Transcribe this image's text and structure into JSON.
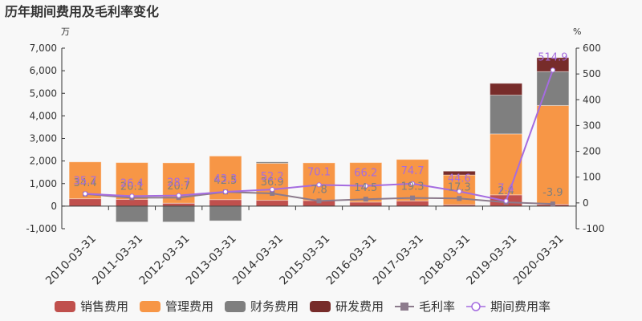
{
  "title": "历年期间费用及毛利率变化",
  "left_unit": "万",
  "right_unit": "%",
  "colors": {
    "sales": "#c0504d",
    "admin": "#f79646",
    "finance": "#7f7f7f",
    "rnd": "#772c2a",
    "gross_margin": "#8c7b8c",
    "expense_rate": "#a56ce0"
  },
  "legend": [
    {
      "key": "sales",
      "label": "销售费用",
      "type": "bar"
    },
    {
      "key": "admin",
      "label": "管理费用",
      "type": "bar"
    },
    {
      "key": "finance",
      "label": "财务费用",
      "type": "bar"
    },
    {
      "key": "rnd",
      "label": "研发费用",
      "type": "bar"
    },
    {
      "key": "gross_margin",
      "label": "毛利率",
      "type": "line-square"
    },
    {
      "key": "expense_rate",
      "label": "期间费用率",
      "type": "line-circle"
    }
  ],
  "chart_data": {
    "type": "bar",
    "title": "历年期间费用及毛利率变化",
    "xlabel": "",
    "ylabel": "万",
    "y2label": "%",
    "ylim": [
      -1000,
      7000
    ],
    "y2lim": [
      -100,
      600
    ],
    "yticks": [
      "7,000",
      "6,000",
      "5,000",
      "4,000",
      "3,000",
      "2,000",
      "1,000",
      "0",
      "-1,000"
    ],
    "y2ticks": [
      "600",
      "500",
      "400",
      "300",
      "200",
      "100",
      "0",
      "-100"
    ],
    "categories": [
      "2010-03-31",
      "2011-03-31",
      "2012-03-31",
      "2013-03-31",
      "2014-03-31",
      "2015-03-31",
      "2016-03-31",
      "2017-03-31",
      "2018-03-31",
      "2019-03-31",
      "2020-03-31"
    ],
    "series": [
      {
        "name": "销售费用",
        "type": "bar",
        "stack": true,
        "values": [
          330,
          300,
          130,
          290,
          260,
          250,
          180,
          230,
          70,
          500,
          80
        ]
      },
      {
        "name": "管理费用",
        "type": "bar",
        "stack": true,
        "values": [
          1630,
          1630,
          1790,
          1930,
          1640,
          1670,
          1750,
          1840,
          1310,
          2700,
          4380
        ]
      },
      {
        "name": "财务费用",
        "type": "bar",
        "stack": true,
        "values": [
          0,
          -700,
          -700,
          -650,
          60,
          0,
          0,
          0,
          0,
          1720,
          1500
        ]
      },
      {
        "name": "研发费用",
        "type": "bar",
        "stack": true,
        "values": [
          0,
          0,
          0,
          0,
          0,
          0,
          0,
          0,
          170,
          520,
          620
        ]
      },
      {
        "name": "毛利率",
        "type": "line",
        "axis": "right",
        "values": [
          34.4,
          20.1,
          20.7,
          42.5,
          36.9,
          7.8,
          14.5,
          19.3,
          17.3,
          2.4,
          -3.9
        ],
        "labels": [
          "34.4",
          "20.1",
          "20.7",
          "42.5",
          "36.9",
          "7.8",
          "14.5",
          "19.3",
          "17.3",
          "2.4",
          "-3.9"
        ]
      },
      {
        "name": "期间费用率",
        "type": "line",
        "axis": "right",
        "values": [
          35.7,
          26.4,
          28.7,
          43.3,
          52.2,
          70.1,
          66.2,
          74.7,
          44.6,
          7.4,
          514.9
        ],
        "labels": [
          "35.7",
          "26.4",
          "28.7",
          "43.3",
          "52.2",
          "70.1",
          "66.2",
          "74.7",
          "44.6",
          "7.4",
          "514.9"
        ]
      }
    ],
    "grid": false,
    "legend_position": "bottom"
  }
}
